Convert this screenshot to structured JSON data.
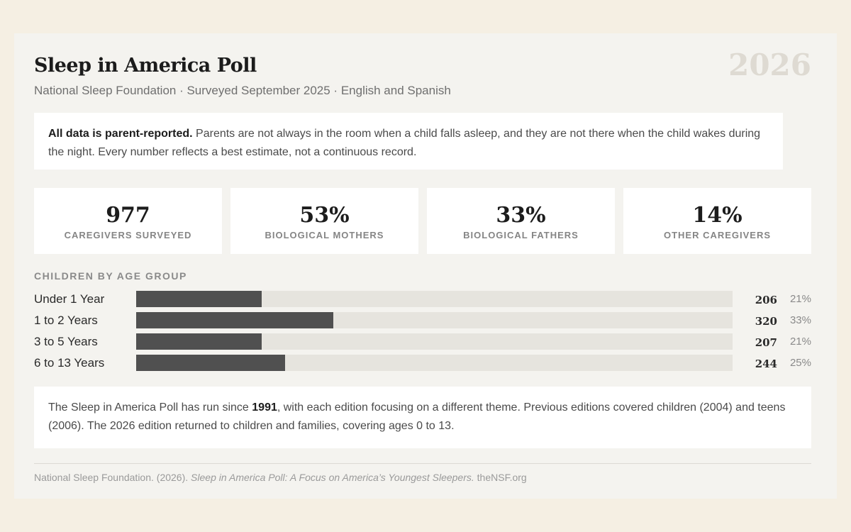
{
  "header": {
    "title": "Sleep in America Poll",
    "year": "2026",
    "subtitle": "National Sleep Foundation · Surveyed September 2025 · English and Spanish"
  },
  "note": {
    "bold": "All data is parent-reported.",
    "text": " Parents are not always in the room when a child falls asleep, and they are not there when the child wakes during the night. Every number reflects a best estimate, not a continuous record."
  },
  "stats": [
    {
      "value": "977",
      "label": "CAREGIVERS SURVEYED"
    },
    {
      "value": "53%",
      "label": "BIOLOGICAL MOTHERS"
    },
    {
      "value": "33%",
      "label": "BIOLOGICAL FATHERS"
    },
    {
      "value": "14%",
      "label": "OTHER CAREGIVERS"
    }
  ],
  "chart_data": {
    "type": "bar",
    "title": "CHILDREN BY AGE GROUP",
    "categories": [
      "Under 1 Year",
      "1 to 2 Years",
      "3 to 5 Years",
      "6 to 13 Years"
    ],
    "values": [
      206,
      320,
      207,
      244
    ],
    "percent_labels": [
      "21%",
      "33%",
      "21%",
      "25%"
    ],
    "percents": [
      21,
      33,
      21,
      25
    ],
    "xlim": [
      0,
      100
    ],
    "grid": false
  },
  "history": {
    "pre": "The Sleep in America Poll has run since ",
    "bold": "1991",
    "post": ", with each edition focusing on a different theme. Previous editions covered children (2004) and teens (2006). The 2026 edition returned to children and families, covering ages 0 to 13."
  },
  "source": {
    "pre": "National Sleep Foundation. (2026). ",
    "italic": "Sleep in America Poll: A Focus on America’s Youngest Sleepers.",
    "post": " theNSF.org"
  },
  "colors": {
    "bar_fill": "#505050",
    "bar_track": "#e6e4de",
    "background": "#f5efe3"
  }
}
